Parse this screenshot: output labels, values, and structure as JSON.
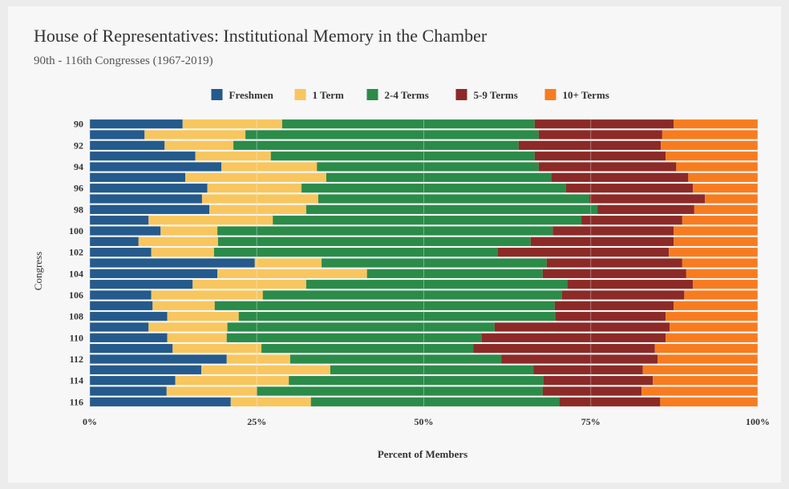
{
  "chart_data": {
    "type": "stacked-bar-horizontal",
    "title": "House of Representatives: Institutional Memory in the Chamber",
    "subtitle": "90th - 116th Congresses (1967-2019)",
    "x_label": "Percent of Members",
    "y_label": "Congress",
    "categories": [
      "90",
      null,
      "92",
      null,
      "94",
      null,
      "96",
      null,
      "98",
      null,
      "100",
      null,
      "102",
      null,
      "104",
      null,
      "106",
      null,
      "108",
      null,
      "110",
      null,
      "112",
      null,
      "114",
      null,
      "116"
    ],
    "series": [
      {
        "name": "Freshmen",
        "color": "#245a8c",
        "values": [
          13.9,
          8.2,
          11.2,
          15.8,
          19.7,
          14.3,
          17.6,
          16.8,
          17.9,
          8.8,
          10.6,
          7.3,
          9.2,
          24.7,
          19.1,
          15.4,
          9.2,
          9.4,
          11.6,
          8.8,
          11.6,
          12.4,
          20.5,
          16.7,
          12.8,
          11.5,
          21.1
        ]
      },
      {
        "name": "1 Term",
        "color": "#f8c65e",
        "values": [
          14.9,
          15.1,
          10.3,
          11.3,
          14.3,
          21.1,
          14.1,
          17.4,
          14.5,
          18.6,
          8.5,
          11.9,
          9.4,
          10.0,
          22.4,
          17.0,
          16.7,
          9.3,
          10.7,
          11.8,
          8.9,
          13.3,
          9.5,
          19.3,
          17.0,
          13.5,
          12.0
        ]
      },
      {
        "name": "2-4 Terms",
        "color": "#2b8b49",
        "values": [
          37.8,
          43.9,
          42.7,
          39.5,
          33.2,
          33.7,
          39.6,
          40.6,
          43.6,
          46.2,
          50.2,
          46.8,
          42.5,
          33.7,
          26.3,
          39.1,
          44.8,
          50.9,
          47.4,
          40.0,
          38.2,
          31.7,
          31.6,
          30.4,
          38.1,
          42.8,
          37.2
        ]
      },
      {
        "name": "5-9 Terms",
        "color": "#8c2a27",
        "values": [
          20.8,
          18.5,
          21.3,
          19.6,
          20.6,
          20.5,
          19.0,
          17.3,
          14.5,
          15.1,
          18.1,
          21.4,
          25.6,
          20.3,
          21.5,
          18.8,
          18.3,
          17.8,
          16.5,
          26.2,
          27.5,
          27.2,
          23.4,
          16.4,
          16.4,
          14.8,
          15.1
        ]
      },
      {
        "name": "10+ Terms",
        "color": "#f77c20",
        "values": [
          12.6,
          14.3,
          14.5,
          13.8,
          12.2,
          10.4,
          9.7,
          7.9,
          9.5,
          11.3,
          12.6,
          12.6,
          13.3,
          11.3,
          10.7,
          9.7,
          11.0,
          12.6,
          13.8,
          13.2,
          13.8,
          15.4,
          15.0,
          17.2,
          15.7,
          17.4,
          14.6
        ]
      }
    ],
    "xlim": [
      0,
      100
    ],
    "xticks": [
      {
        "value": 0,
        "label": "0%"
      },
      {
        "value": 25,
        "label": "25%"
      },
      {
        "value": 50,
        "label": "50%"
      },
      {
        "value": 75,
        "label": "75%"
      },
      {
        "value": 100,
        "label": "100%"
      }
    ],
    "grid": true,
    "legend": "top"
  }
}
